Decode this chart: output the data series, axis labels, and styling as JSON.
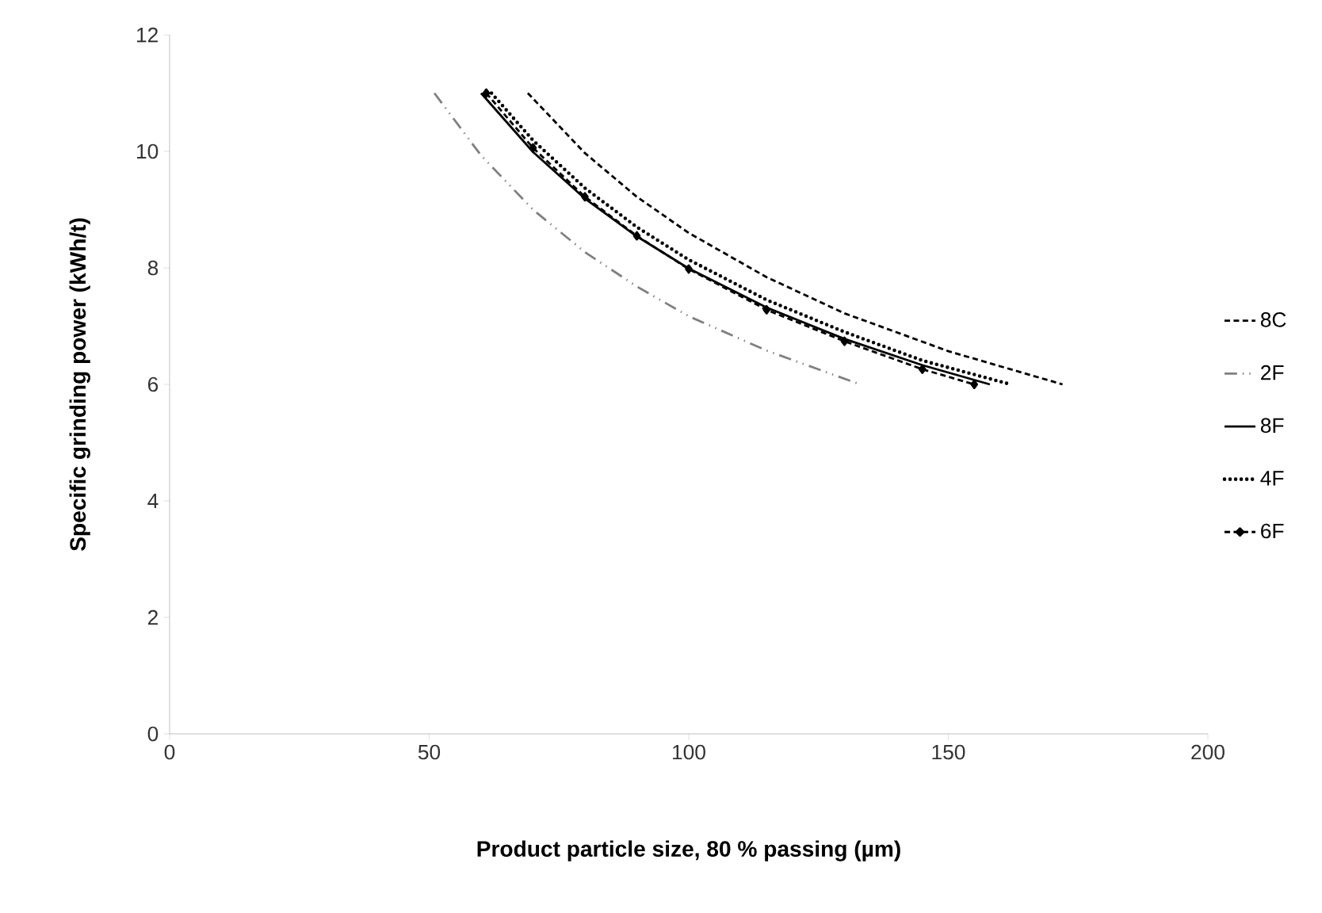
{
  "chart_data": {
    "type": "line",
    "xlabel": "Product particle size, 80 % passing (µm)",
    "ylabel": "Specific grinding power (kWh/t)",
    "xlim": [
      0,
      200
    ],
    "xticks": [
      0,
      50,
      100,
      150,
      200
    ],
    "ylim": [
      0,
      12
    ],
    "yticks": [
      0,
      2,
      4,
      6,
      8,
      10,
      12
    ],
    "grid": false,
    "legend": "right",
    "series": [
      {
        "name": "8C",
        "color": "#000000",
        "line_style": "dashed",
        "x": [
          69,
          80,
          90,
          100,
          115,
          130,
          150,
          172
        ],
        "values": [
          11,
          9.97,
          9.22,
          8.6,
          7.84,
          7.22,
          6.57,
          6
        ]
      },
      {
        "name": "2F",
        "color": "#808080",
        "line_style": "dashdotdotted",
        "x": [
          51,
          60,
          70,
          80,
          90,
          100,
          115,
          133
        ],
        "values": [
          11,
          9.93,
          9.0,
          8.27,
          7.68,
          7.17,
          6.58,
          6
        ]
      },
      {
        "name": "8F",
        "color": "#000000",
        "line_style": "solid",
        "x": [
          60,
          70,
          80,
          90,
          100,
          115,
          130,
          145,
          158
        ],
        "values": [
          11,
          9.99,
          9.19,
          8.54,
          7.99,
          7.32,
          6.78,
          6.33,
          6
        ]
      },
      {
        "name": "4F",
        "color": "#000000",
        "line_style": "dotted",
        "x": [
          62,
          70,
          80,
          90,
          100,
          115,
          130,
          145,
          162
        ],
        "values": [
          11,
          10.19,
          9.37,
          8.7,
          8.14,
          7.45,
          6.9,
          6.41,
          6
        ]
      },
      {
        "name": "6F",
        "color": "#000000",
        "line_style": "dashed",
        "marker": "diamond",
        "x": [
          61,
          70,
          80,
          90,
          100,
          115,
          130,
          145,
          155
        ],
        "values": [
          11,
          10.06,
          9.22,
          8.55,
          7.98,
          7.28,
          6.74,
          6.26,
          6
        ]
      }
    ]
  }
}
